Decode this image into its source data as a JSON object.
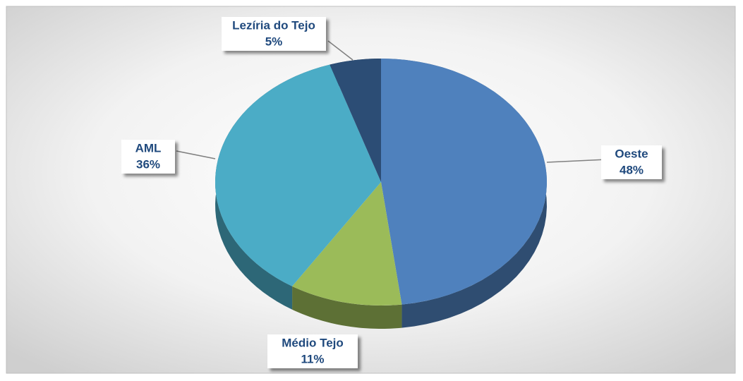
{
  "chart_data": {
    "type": "pie",
    "categories": [
      "Oeste",
      "Médio Tejo",
      "AML",
      "Lezíria do Tejo"
    ],
    "values": [
      48,
      11,
      36,
      5
    ],
    "value_labels": [
      "48%",
      "11%",
      "36%",
      "5%"
    ],
    "colors": [
      "#4f81bd",
      "#9bbb59",
      "#4bacc6",
      "#2c4d75"
    ]
  }
}
